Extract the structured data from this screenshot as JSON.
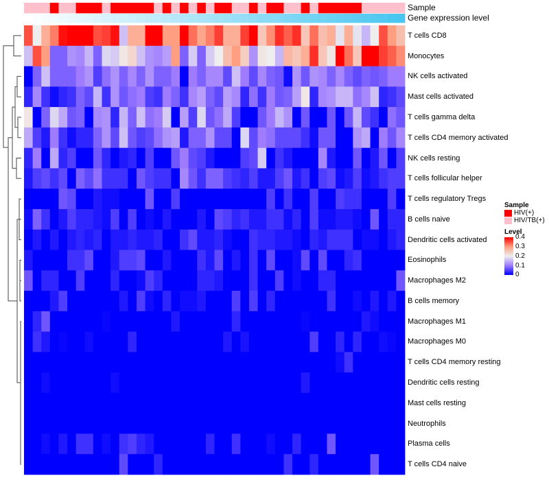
{
  "chart_data": {
    "type": "heatmap",
    "title": "",
    "annotations": [
      {
        "name": "Sample",
        "type": "categorical",
        "values": [
          "HIV/TB(+)",
          "HIV/TB(+)",
          "HIV/TB(+)",
          "HIV(+)",
          "HIV/TB(+)",
          "HIV/TB(+)",
          "HIV(+)",
          "HIV(+)",
          "HIV(+)",
          "HIV/TB(+)",
          "HIV(+)",
          "HIV(+)",
          "HIV(+)",
          "HIV(+)",
          "HIV(+)",
          "HIV/TB(+)",
          "HIV(+)",
          "HIV/TB(+)",
          "HIV(+)",
          "HIV/TB(+)",
          "HIV(+)",
          "HIV/TB(+)",
          "HIV(+)",
          "HIV(+)",
          "HIV/TB(+)",
          "HIV/TB(+)",
          "HIV(+)",
          "HIV/TB(+)",
          "HIV(+)",
          "HIV(+)",
          "HIV/TB(+)",
          "HIV/TB(+)",
          "HIV(+)",
          "HIV/TB(+)",
          "HIV(+)",
          "HIV(+)",
          "HIV(+)",
          "HIV(+)",
          "HIV(+)",
          "HIV/TB(+)",
          "HIV/TB(+)",
          "HIV/TB(+)",
          "HIV/TB(+)",
          "HIV/TB(+)"
        ]
      },
      {
        "name": "Gene expression level",
        "type": "continuous",
        "trend": "increasing left to right"
      }
    ],
    "rows": [
      "T cells CD8",
      "Monocytes",
      "NK cells activated",
      "Mast cells activated",
      "T cells gamma delta",
      "T cells CD4 memory activated",
      "NK cells resting",
      "T cells follicular helper",
      "T cells regulatory  Tregs",
      "B cells naive",
      "Dendritic cells activated",
      "Eosinophils",
      "Macrophages M2",
      "B cells memory",
      "Macrophages M1",
      "Macrophages M0",
      "T cells CD4 memory resting",
      "Dendritic cells resting",
      "Mast cells resting",
      "Neutrophils",
      "Plasma cells",
      "T cells CD4 naive"
    ],
    "values": [
      [
        0.35,
        0.2,
        0.28,
        0.32,
        0.39,
        0.4,
        0.4,
        0.4,
        0.35,
        0.36,
        0.39,
        0.16,
        0.28,
        0.28,
        0.4,
        0.4,
        0.3,
        0.3,
        0.4,
        0.33,
        0.29,
        0.32,
        0.36,
        0.28,
        0.28,
        0.36,
        0.4,
        0.25,
        0.31,
        0.37,
        0.34,
        0.37,
        0.25,
        0.33,
        0.26,
        0.28,
        0.19,
        0.28,
        0.19,
        0.15,
        0.2,
        0.35,
        0.3,
        0.26
      ],
      [
        0.16,
        0.35,
        0.3,
        0.08,
        0.08,
        0.12,
        0.11,
        0.15,
        0.08,
        0.18,
        0.17,
        0.21,
        0.23,
        0.16,
        0.12,
        0.11,
        0.13,
        0.3,
        0.08,
        0.17,
        0.08,
        0.17,
        0.2,
        0.26,
        0.3,
        0.24,
        0.12,
        0.21,
        0.2,
        0.15,
        0.27,
        0.25,
        0.28,
        0.37,
        0.25,
        0.21,
        0.4,
        0.33,
        0.25,
        0.4,
        0.4,
        0.36,
        0.34,
        0.31
      ],
      [
        0,
        0.08,
        0.16,
        0.08,
        0.08,
        0.08,
        0.1,
        0.12,
        0.05,
        0.09,
        0.12,
        0.08,
        0.11,
        0.08,
        0.12,
        0.08,
        0.08,
        0.1,
        0,
        0.1,
        0.08,
        0.11,
        0.11,
        0.06,
        0.16,
        0.1,
        0.06,
        0.11,
        0.08,
        0.07,
        0.01,
        0.12,
        0.07,
        0.12,
        0.11,
        0.08,
        0.11,
        0.08,
        0.06,
        0.08,
        0.07,
        0.08,
        0.1,
        0.1
      ],
      [
        0.03,
        0.11,
        0.04,
        0.01,
        0.03,
        0.04,
        0.08,
        0.06,
        0.15,
        0.04,
        0.12,
        0.07,
        0.09,
        0.1,
        0.05,
        0.04,
        0.1,
        0.08,
        0.04,
        0.11,
        0.13,
        0.08,
        0.06,
        0.13,
        0.11,
        0.03,
        0.09,
        0.04,
        0.1,
        0.07,
        0.08,
        0.13,
        0.21,
        0.03,
        0.11,
        0.12,
        0.15,
        0.15,
        0.09,
        0.11,
        0.16,
        0.03,
        0.04,
        0.06
      ],
      [
        0.21,
        0,
        0.08,
        0.18,
        0.14,
        0.07,
        0.08,
        0,
        0.11,
        0.12,
        0.03,
        0.15,
        0.08,
        0.16,
        0.09,
        0.1,
        0.17,
        0,
        0.13,
        0.05,
        0.18,
        0.07,
        0.09,
        0.14,
        0.05,
        0,
        0,
        0.07,
        0.1,
        0.15,
        0.12,
        0,
        0.07,
        0,
        0,
        0.07,
        0,
        0.07,
        0.15,
        0.06,
        0.04,
        0,
        0.09,
        0.07
      ],
      [
        0.14,
        0.05,
        0.02,
        0.1,
        0.04,
        0.01,
        0.03,
        0.03,
        0.08,
        0.12,
        0.06,
        0.16,
        0.07,
        0.05,
        0.06,
        0.09,
        0.12,
        0.13,
        0.02,
        0.08,
        0.08,
        0.12,
        0.06,
        0.06,
        0,
        0.18,
        0.06,
        0.1,
        0.09,
        0.06,
        0.06,
        0.06,
        0.04,
        0.01,
        0.07,
        0.07,
        0,
        0,
        0.12,
        0.14,
        0,
        0.1,
        0.07,
        0.11
      ],
      [
        0.03,
        0.1,
        0,
        0.14,
        0.03,
        0.05,
        0,
        0,
        0.07,
        0.03,
        0,
        0.02,
        0.03,
        0,
        0.05,
        0,
        0,
        0.07,
        0.1,
        0.06,
        0.05,
        0.02,
        0,
        0,
        0,
        0.05,
        0.06,
        0.17,
        0,
        0.04,
        0.02,
        0,
        0,
        0,
        0.11,
        0.02,
        0,
        0,
        0.07,
        0,
        0.02,
        0.07,
        0,
        0.05
      ],
      [
        0.02,
        0.05,
        0.06,
        0.04,
        0.06,
        0,
        0.08,
        0.06,
        0.09,
        0.04,
        0.04,
        0.04,
        0,
        0.07,
        0.05,
        0.04,
        0.04,
        0,
        0.11,
        0.07,
        0.04,
        0.08,
        0.08,
        0.05,
        0.04,
        0.03,
        0.05,
        0.02,
        0.02,
        0.05,
        0.07,
        0.02,
        0.04,
        0,
        0.05,
        0.06,
        0.01,
        0.02,
        0.05,
        0.01,
        0.02,
        0.04,
        0.05,
        0.05
      ],
      [
        0,
        0,
        0,
        0,
        0.07,
        0.06,
        0,
        0,
        0.02,
        0.01,
        0.01,
        0,
        0,
        0,
        0.07,
        0,
        0,
        0.05,
        0,
        0,
        0,
        0,
        0,
        0,
        0,
        0,
        0,
        0,
        0.05,
        0,
        0.04,
        0,
        0,
        0.05,
        0,
        0,
        0.05,
        0.04,
        0.04,
        0,
        0,
        0,
        0.05,
        0
      ],
      [
        0.01,
        0.08,
        0.04,
        0,
        0.02,
        0.05,
        0.03,
        0.03,
        0.02,
        0.01,
        0.05,
        0,
        0.05,
        0,
        0.01,
        0,
        0.02,
        0,
        0,
        0,
        0.02,
        0,
        0.06,
        0.05,
        0.03,
        0.04,
        0.02,
        0.02,
        0.04,
        0.04,
        0.01,
        0.03,
        0,
        0.05,
        0.01,
        0.01,
        0.02,
        0.02,
        0.01,
        0,
        0.07,
        0,
        0.03,
        0.03
      ],
      [
        0,
        0.02,
        0,
        0.02,
        0,
        0.02,
        0.03,
        0.02,
        0.03,
        0,
        0.02,
        0.02,
        0.03,
        0.02,
        0.02,
        0.03,
        0,
        0,
        0.04,
        0.06,
        0.02,
        0.02,
        0.03,
        0.01,
        0,
        0,
        0.04,
        0.03,
        0.03,
        0.02,
        0.02,
        0.01,
        0,
        0.03,
        0.02,
        0.04,
        0.04,
        0.04,
        0,
        0.01,
        0.01,
        0,
        0.02,
        0.03
      ],
      [
        0.02,
        0,
        0,
        0,
        0,
        0.04,
        0.04,
        0.06,
        0,
        0,
        0.02,
        0.05,
        0.05,
        0.06,
        0,
        0,
        0.02,
        0,
        0,
        0,
        0.04,
        0.02,
        0.06,
        0,
        0.02,
        0,
        0.04,
        0,
        0.06,
        0,
        0,
        0.01,
        0.06,
        0,
        0.06,
        0,
        0,
        0.03,
        0.04,
        0,
        0,
        0,
        0,
        0
      ],
      [
        0.07,
        0,
        0.03,
        0.03,
        0,
        0,
        0.05,
        0,
        0,
        0,
        0.03,
        0,
        0,
        0.01,
        0.05,
        0.03,
        0,
        0,
        0,
        0,
        0.03,
        0.03,
        0.02,
        0,
        0,
        0,
        0.04,
        0,
        0,
        0.05,
        0,
        0.01,
        0,
        0,
        0.03,
        0.03,
        0,
        0,
        0,
        0,
        0,
        0,
        0,
        0.07
      ],
      [
        0,
        0,
        0,
        0.02,
        0.05,
        0,
        0,
        0,
        0,
        0,
        0,
        0.02,
        0,
        0.05,
        0.01,
        0,
        0.03,
        0,
        0.01,
        0.01,
        0.02,
        0,
        0,
        0,
        0.05,
        0,
        0.05,
        0,
        0.03,
        0,
        0,
        0,
        0,
        0,
        0,
        0.04,
        0,
        0,
        0.01,
        0,
        0.02,
        0,
        0.02,
        0
      ],
      [
        0,
        0.03,
        0.07,
        0,
        0,
        0,
        0,
        0,
        0,
        0.005,
        0,
        0,
        0,
        0,
        0,
        0,
        0,
        0.02,
        0,
        0,
        0,
        0,
        0,
        0,
        0.03,
        0,
        0,
        0,
        0,
        0,
        0,
        0,
        0.005,
        0,
        0,
        0,
        0,
        0,
        0,
        0.02,
        0.01,
        0,
        0,
        0
      ],
      [
        0,
        0.04,
        0.02,
        0,
        0.005,
        0,
        0,
        0.01,
        0,
        0,
        0,
        0,
        0.03,
        0,
        0,
        0,
        0,
        0,
        0,
        0,
        0,
        0,
        0,
        0.02,
        0,
        0.015,
        0,
        0,
        0,
        0,
        0,
        0,
        0,
        0.05,
        0,
        0,
        0.03,
        0,
        0.03,
        0,
        0,
        0.01,
        0.005,
        0
      ],
      [
        0,
        0,
        0,
        0,
        0,
        0,
        0,
        0,
        0,
        0,
        0,
        0,
        0,
        0,
        0,
        0,
        0,
        0,
        0,
        0,
        0,
        0,
        0,
        0,
        0,
        0,
        0,
        0,
        0,
        0,
        0,
        0,
        0,
        0,
        0,
        0,
        0.01,
        0.04,
        0,
        0,
        0,
        0,
        0,
        0
      ],
      [
        0,
        0,
        0.01,
        0,
        0,
        0,
        0,
        0,
        0,
        0,
        0.01,
        0,
        0,
        0,
        0,
        0,
        0,
        0,
        0,
        0,
        0,
        0,
        0,
        0,
        0,
        0,
        0,
        0,
        0,
        0,
        0,
        0,
        0.02,
        0,
        0,
        0,
        0,
        0,
        0,
        0,
        0,
        0,
        0,
        0
      ],
      [
        0,
        0,
        0,
        0,
        0,
        0,
        0,
        0,
        0,
        0,
        0,
        0,
        0,
        0,
        0,
        0,
        0,
        0,
        0,
        0,
        0,
        0,
        0,
        0,
        0,
        0,
        0,
        0,
        0,
        0,
        0,
        0,
        0,
        0,
        0,
        0,
        0,
        0,
        0,
        0,
        0,
        0,
        0,
        0
      ],
      [
        0,
        0,
        0,
        0,
        0,
        0,
        0,
        0,
        0,
        0,
        0,
        0,
        0,
        0,
        0,
        0,
        0,
        0,
        0,
        0,
        0,
        0,
        0,
        0,
        0,
        0,
        0,
        0,
        0,
        0,
        0,
        0,
        0,
        0,
        0,
        0,
        0,
        0,
        0,
        0,
        0,
        0,
        0,
        0
      ],
      [
        0,
        0,
        0.01,
        0,
        0.02,
        0,
        0.04,
        0.04,
        0,
        0.01,
        0,
        0.04,
        0.05,
        0.03,
        0.02,
        0,
        0,
        0,
        0,
        0,
        0,
        0.03,
        0,
        0,
        0.04,
        0,
        0,
        0,
        0.01,
        0,
        0,
        0.03,
        0,
        0,
        0,
        0.07,
        0,
        0,
        0,
        0,
        0,
        0,
        0,
        0
      ],
      [
        0,
        0,
        0,
        0,
        0,
        0,
        0,
        0,
        0,
        0,
        0,
        0.06,
        0,
        0,
        0,
        0.03,
        0,
        0,
        0,
        0,
        0,
        0,
        0,
        0,
        0,
        0,
        0,
        0,
        0,
        0,
        0.04,
        0,
        0,
        0.03,
        0,
        0,
        0,
        0,
        0,
        0,
        0.07,
        0,
        0,
        0
      ]
    ],
    "color_scale": {
      "min": 0,
      "max": 0.4,
      "stops": [
        [
          0,
          "#0000FF"
        ],
        [
          0.1,
          "#9E7BFF"
        ],
        [
          0.2,
          "#EEEEEE"
        ],
        [
          0.3,
          "#FF9E81"
        ],
        [
          0.4,
          "#FF0000"
        ]
      ]
    },
    "legend": {
      "sample_title": "Sample",
      "sample_items": [
        {
          "label": "HIV(+)",
          "color": "#FF0000"
        },
        {
          "label": "HIV/TB(+)",
          "color": "#FFC0CB"
        }
      ],
      "level_title": "Level",
      "level_ticks": [
        "0.4",
        "0.3",
        "0.2",
        "0.1",
        "0"
      ]
    },
    "annotation_colors": {
      "expr_low": "#FFFFFF",
      "expr_high": "#48C6F0"
    },
    "dendrogram": "rows"
  }
}
